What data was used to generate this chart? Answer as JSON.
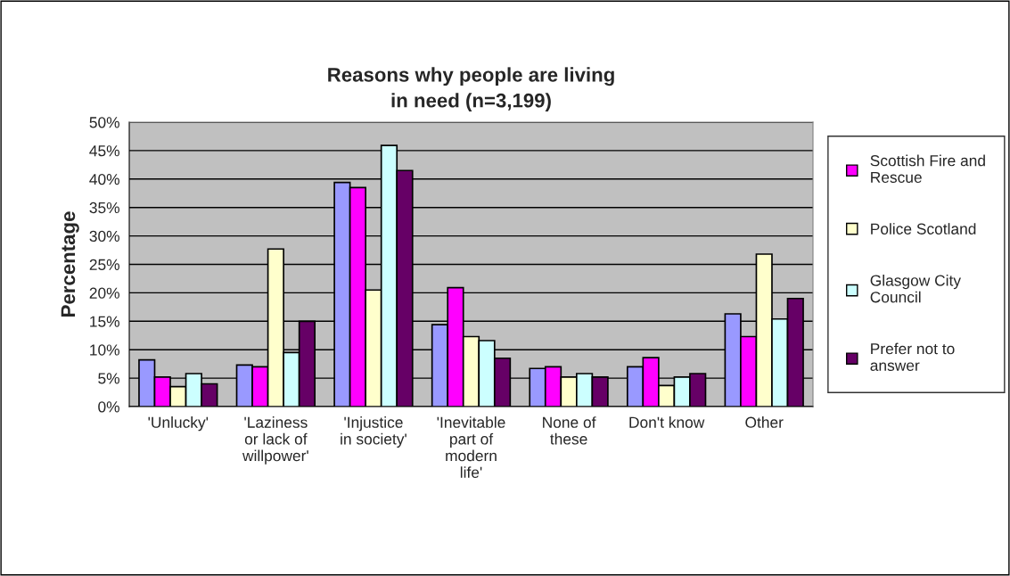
{
  "chart_data": {
    "type": "bar",
    "title": "Reasons why people are living in need (n=3,199)",
    "ylabel": "Percentage",
    "categories": [
      "'Unlucky'",
      "'Laziness or lack of willpower'",
      "'Injustice in society'",
      "'Inevitable part of modern life'",
      "None of these",
      "Don't know",
      "Other"
    ],
    "series": [
      {
        "color": "#9999ff",
        "values": [
          8.2,
          7.3,
          39.4,
          14.4,
          6.7,
          7.0,
          16.3
        ]
      },
      {
        "name": "Scottish Fire and Rescue",
        "color": "#ff00ff",
        "values": [
          5.2,
          7.0,
          38.5,
          20.9,
          7.0,
          8.6,
          12.3
        ]
      },
      {
        "name": "Police Scotland",
        "color": "#ffffcc",
        "values": [
          3.5,
          27.7,
          20.5,
          12.3,
          5.2,
          3.7,
          26.8
        ]
      },
      {
        "name": "Glasgow City Council",
        "color": "#ccffff",
        "values": [
          5.8,
          9.5,
          45.9,
          11.6,
          5.8,
          5.2,
          15.4
        ]
      },
      {
        "name": "Prefer not to answer",
        "color": "#660066",
        "values": [
          4.0,
          15.0,
          41.5,
          8.5,
          5.2,
          5.8,
          19.0
        ]
      }
    ],
    "ylim": [
      0,
      50
    ],
    "yticks": [
      {
        "value": 0,
        "label": "0%"
      },
      {
        "value": 5,
        "label": "5%"
      },
      {
        "value": 10,
        "label": "10%"
      },
      {
        "value": 15,
        "label": "15%"
      },
      {
        "value": 20,
        "label": "20%"
      },
      {
        "value": 25,
        "label": "25%"
      },
      {
        "value": 30,
        "label": "30%"
      },
      {
        "value": 35,
        "label": "35%"
      },
      {
        "value": 40,
        "label": "40%"
      },
      {
        "value": 45,
        "label": "45%"
      },
      {
        "value": 50,
        "label": "50%"
      }
    ],
    "grid": "y",
    "legend": "right"
  }
}
